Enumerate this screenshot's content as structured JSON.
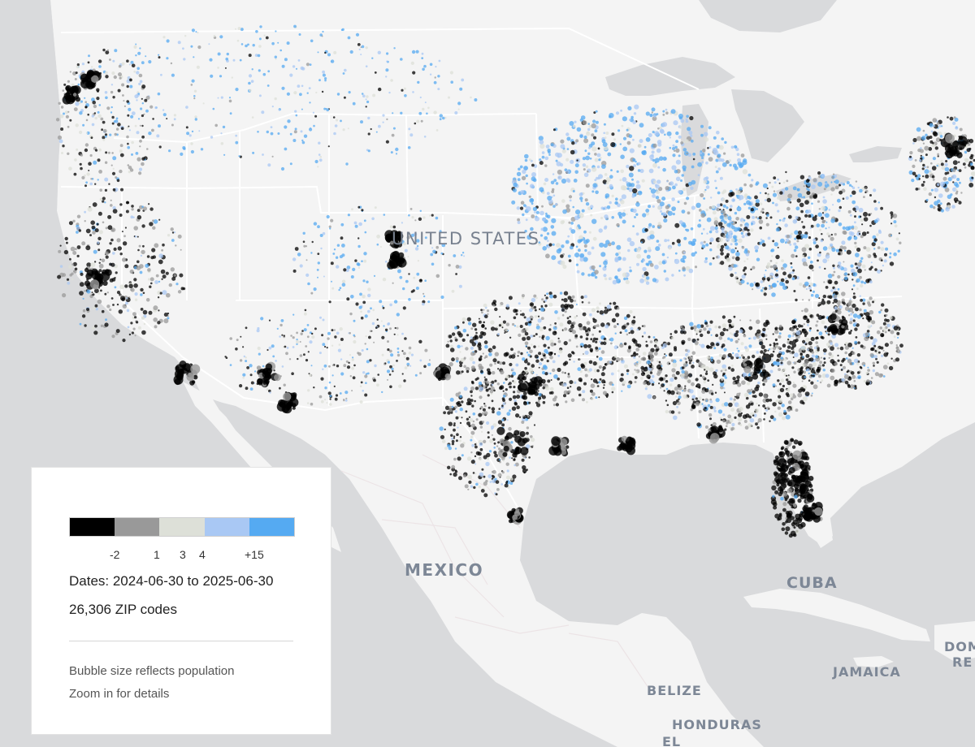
{
  "map": {
    "country_labels": {
      "united_states": "UNITED STATES",
      "mexico": "MEXICO",
      "cuba": "CUBA",
      "jamaica": "JAMAICA",
      "belize": "BELIZE",
      "honduras": "HONDURAS",
      "el_salvador_partial": "EL",
      "dominican_republic_partial_1": "DOM",
      "dominican_republic_partial_2": "RE"
    },
    "colors": {
      "land": "#f4f4f4",
      "water": "#d9dadc",
      "border": "#ffffff"
    }
  },
  "legend": {
    "scale_colors": [
      "#000000",
      "#999999",
      "#dde0d8",
      "#a9c8f4",
      "#55aaf2"
    ],
    "tick_labels": [
      "-2",
      "1",
      "3",
      "4",
      "+15"
    ],
    "dates_text": "Dates: 2024-06-30 to 2025-06-30",
    "zip_count_text": "26,306 ZIP codes",
    "note_bubble_size": "Bubble size reflects population",
    "note_zoom": "Zoom in for details"
  }
}
